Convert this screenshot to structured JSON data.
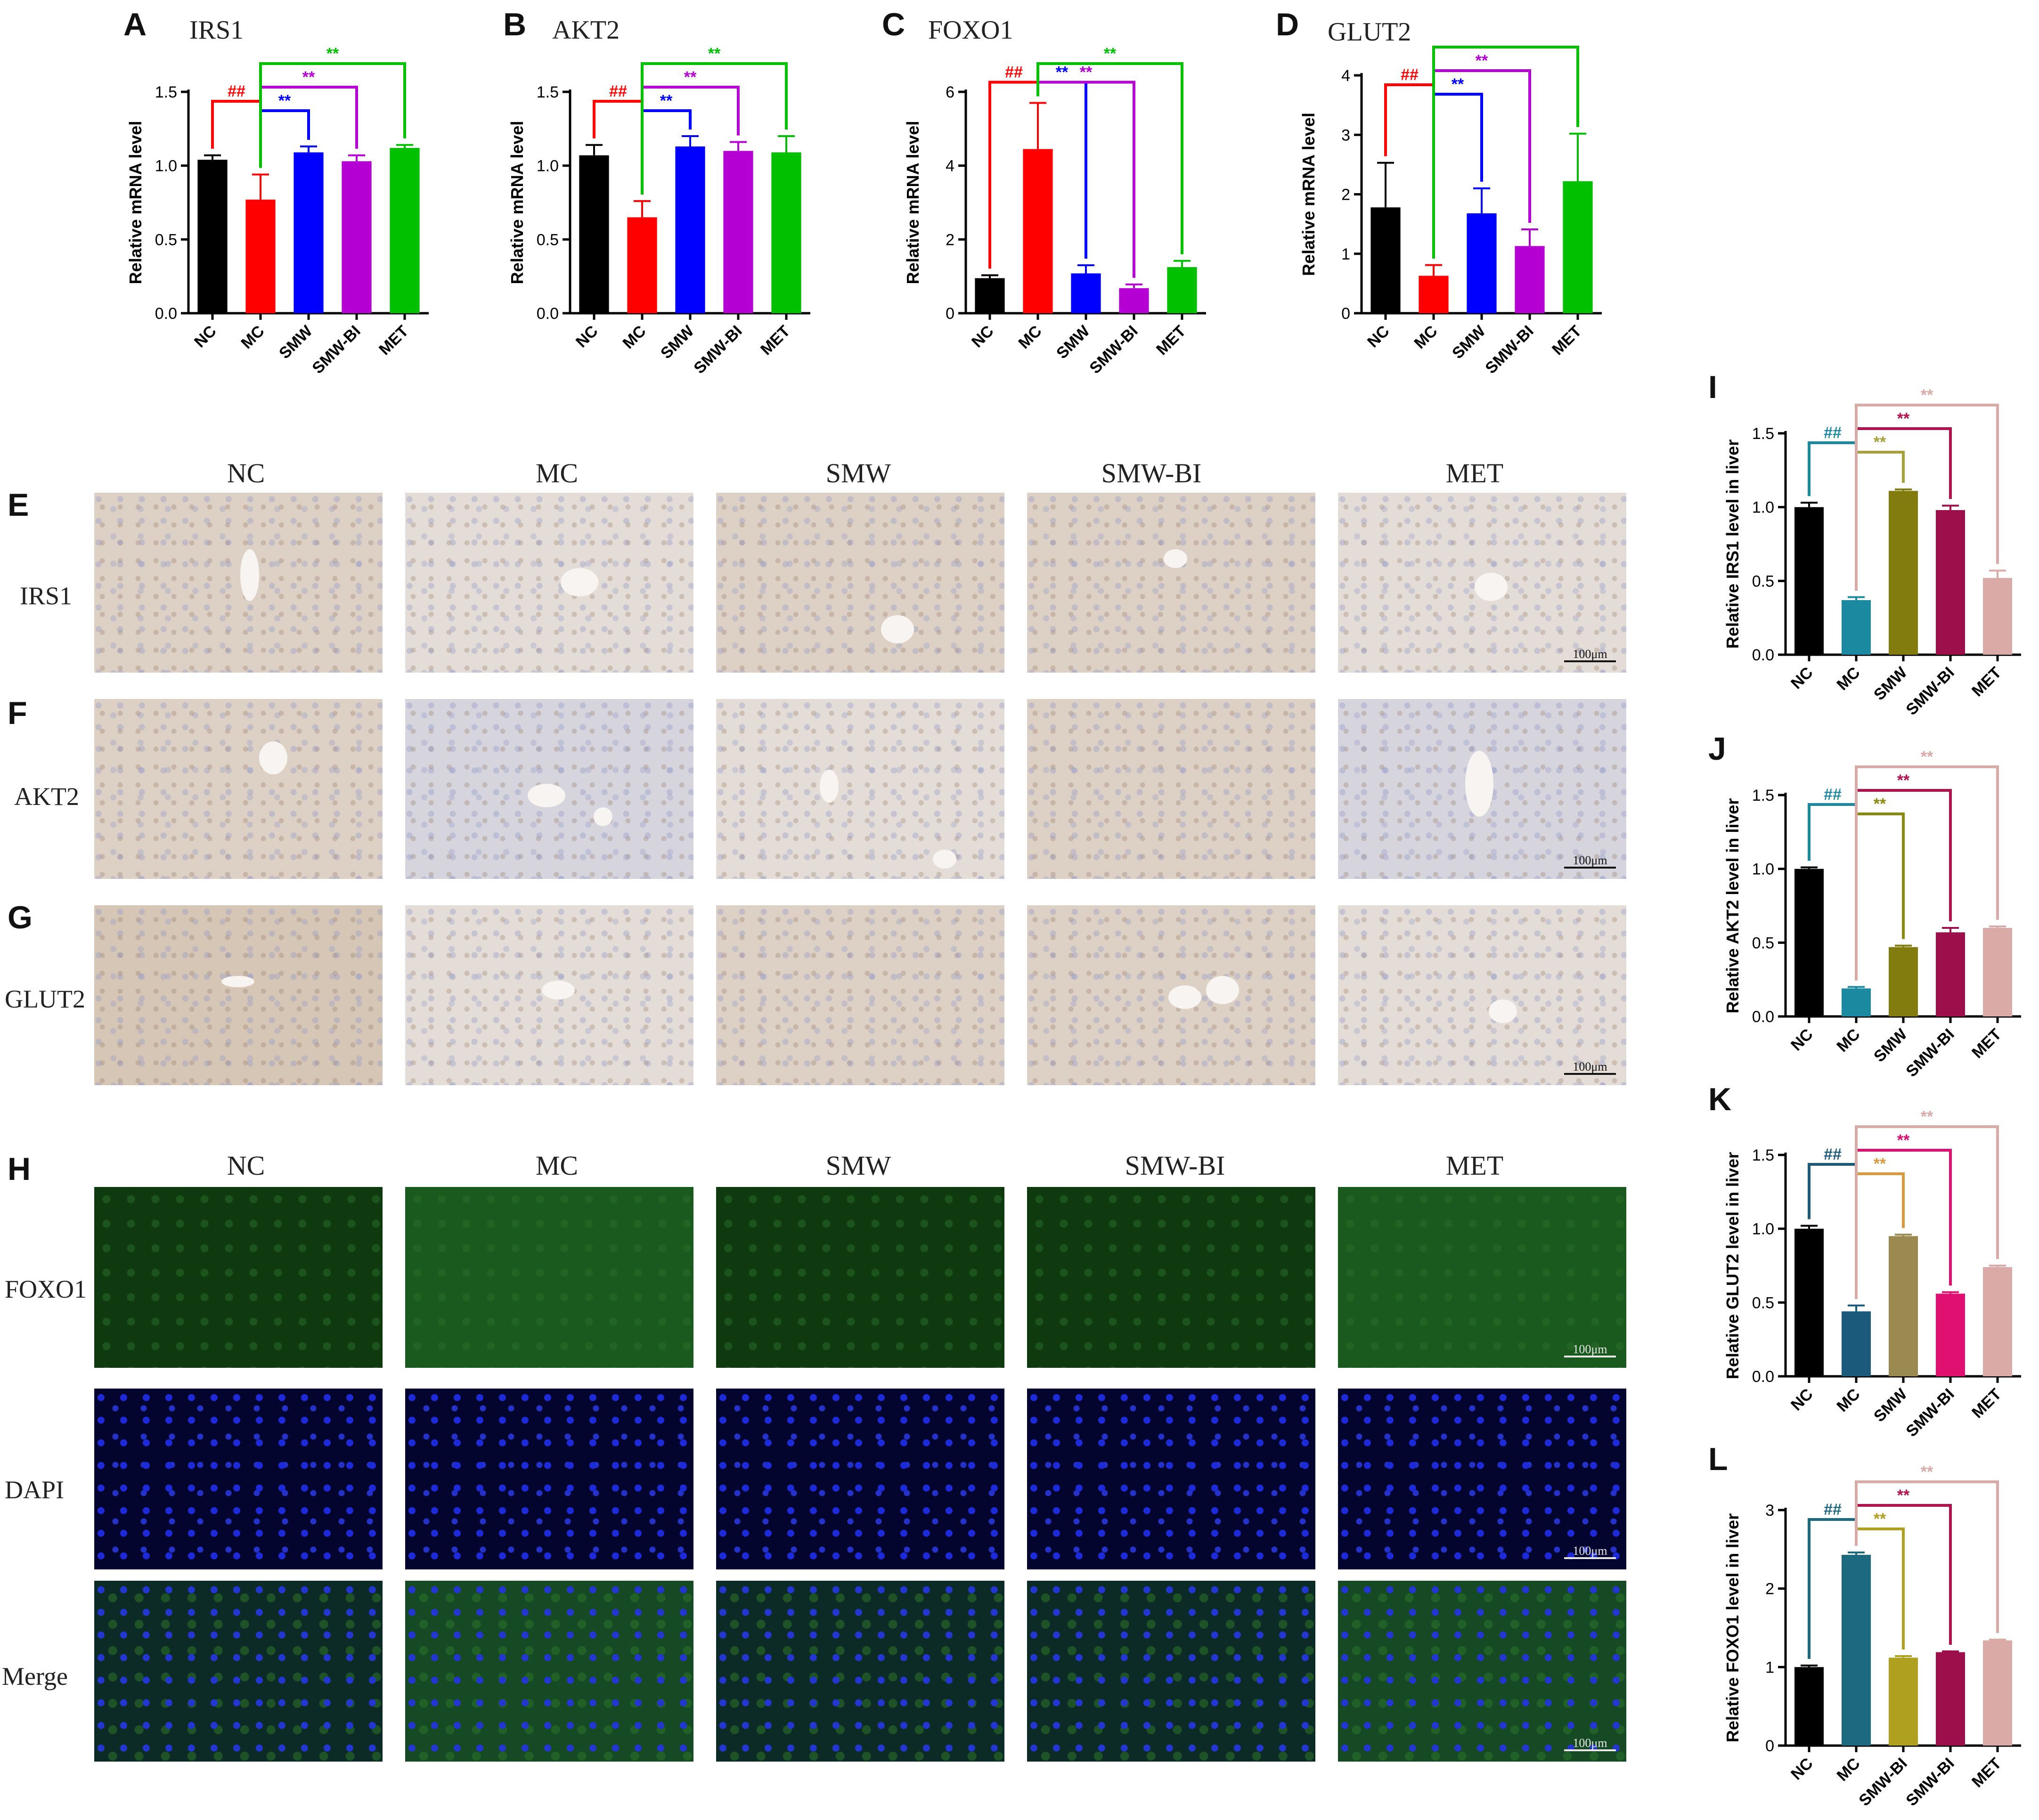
{
  "figure": {
    "panel_letters": [
      "A",
      "B",
      "C",
      "D",
      "E",
      "F",
      "G",
      "H",
      "I",
      "J",
      "K",
      "L"
    ],
    "ihc_columns": [
      "NC",
      "MC",
      "SMW",
      "SMW-BI",
      "MET"
    ],
    "ihc_rows": [
      "IRS1",
      "AKT2",
      "GLUT2"
    ],
    "if_columns": [
      "NC",
      "MC",
      "SMW",
      "SMW-BI",
      "MET"
    ],
    "if_rows": [
      "FOXO1",
      "DAPI",
      "Merge"
    ],
    "scale_bar": "100μm"
  },
  "chart_data": [
    {
      "panel": "A",
      "type": "bar",
      "title": "IRS1",
      "ylabel": "Relative mRNA level",
      "xlabel": "",
      "categories": [
        "NC",
        "MC",
        "SMW",
        "SMW-BI",
        "MET"
      ],
      "values": [
        1.04,
        0.77,
        1.09,
        1.03,
        1.12
      ],
      "errors": [
        0.03,
        0.17,
        0.04,
        0.04,
        0.02
      ],
      "colors": [
        "#000000",
        "#ff0000",
        "#0000ff",
        "#b400d2",
        "#00c000"
      ],
      "ylim": [
        0,
        1.5
      ],
      "yticks": [
        "0.0",
        "0.5",
        "1.0",
        "1.5"
      ],
      "significance": [
        {
          "from": 0,
          "to": 1,
          "label": "##",
          "color": "#ff0000"
        },
        {
          "from": 1,
          "to": 2,
          "label": "**",
          "color": "#0000ff"
        },
        {
          "from": 1,
          "to": 3,
          "label": "**",
          "color": "#b400d2"
        },
        {
          "from": 1,
          "to": 4,
          "label": "**",
          "color": "#00c000"
        }
      ]
    },
    {
      "panel": "B",
      "type": "bar",
      "title": "AKT2",
      "ylabel": "Relative mRNA level",
      "xlabel": "",
      "categories": [
        "NC",
        "MC",
        "SMW",
        "SMW-BI",
        "MET"
      ],
      "values": [
        1.07,
        0.65,
        1.13,
        1.1,
        1.09
      ],
      "errors": [
        0.07,
        0.11,
        0.07,
        0.06,
        0.11
      ],
      "colors": [
        "#000000",
        "#ff0000",
        "#0000ff",
        "#b400d2",
        "#00c000"
      ],
      "ylim": [
        0,
        1.5
      ],
      "yticks": [
        "0.0",
        "0.5",
        "1.0",
        "1.5"
      ],
      "significance": [
        {
          "from": 0,
          "to": 1,
          "label": "##",
          "color": "#ff0000"
        },
        {
          "from": 1,
          "to": 2,
          "label": "**",
          "color": "#0000ff"
        },
        {
          "from": 1,
          "to": 3,
          "label": "**",
          "color": "#b400d2"
        },
        {
          "from": 1,
          "to": 4,
          "label": "**",
          "color": "#00c000"
        }
      ]
    },
    {
      "panel": "C",
      "type": "bar",
      "title": "FOXO1",
      "ylabel": "Relative mRNA level",
      "xlabel": "",
      "categories": [
        "NC",
        "MC",
        "SMW",
        "SMW-BI",
        "MET"
      ],
      "values": [
        0.95,
        4.45,
        1.08,
        0.68,
        1.25
      ],
      "errors": [
        0.08,
        1.25,
        0.22,
        0.1,
        0.17
      ],
      "colors": [
        "#000000",
        "#ff0000",
        "#0000ff",
        "#b400d2",
        "#00c000"
      ],
      "ylim": [
        0,
        6
      ],
      "yticks": [
        "0",
        "2",
        "4",
        "6"
      ],
      "significance": [
        {
          "from": 0,
          "to": 1,
          "label": "##",
          "color": "#ff0000"
        },
        {
          "from": 1,
          "to": 2,
          "label": "**",
          "color": "#0000ff"
        },
        {
          "from": 1,
          "to": 3,
          "label": "**",
          "color": "#b400d2"
        },
        {
          "from": 1,
          "to": 4,
          "label": "**",
          "color": "#00c000"
        }
      ]
    },
    {
      "panel": "D",
      "type": "bar",
      "title": "GLUT2",
      "ylabel": "Relative mRNA level",
      "xlabel": "",
      "categories": [
        "NC",
        "MC",
        "SMW",
        "SMW-BI",
        "MET"
      ],
      "values": [
        1.78,
        0.63,
        1.68,
        1.13,
        2.22
      ],
      "errors": [
        0.75,
        0.18,
        0.42,
        0.28,
        0.8
      ],
      "colors": [
        "#000000",
        "#ff0000",
        "#0000ff",
        "#b400d2",
        "#00c000"
      ],
      "ylim": [
        0,
        4
      ],
      "yticks": [
        "0",
        "1",
        "2",
        "3",
        "4"
      ],
      "significance": [
        {
          "from": 0,
          "to": 1,
          "label": "##",
          "color": "#ff0000"
        },
        {
          "from": 1,
          "to": 2,
          "label": "**",
          "color": "#0000ff"
        },
        {
          "from": 1,
          "to": 3,
          "label": "**",
          "color": "#b400d2"
        },
        {
          "from": 1,
          "to": 4,
          "label": "**",
          "color": "#00c000"
        }
      ]
    },
    {
      "panel": "I",
      "type": "bar",
      "title": "",
      "ylabel": "Relative IRS1  level in liver",
      "xlabel": "",
      "categories": [
        "NC",
        "MC",
        "SMW",
        "SMW-BI",
        "MET"
      ],
      "values": [
        1.0,
        0.37,
        1.11,
        0.98,
        0.52
      ],
      "errors": [
        0.03,
        0.02,
        0.01,
        0.03,
        0.05
      ],
      "colors": [
        "#000000",
        "#1b8aa0",
        "#827b0e",
        "#9c0f4b",
        "#d9aaa6"
      ],
      "ylim": [
        0,
        1.5
      ],
      "yticks": [
        "0.0",
        "0.5",
        "1.0",
        "1.5"
      ],
      "significance": [
        {
          "from": 0,
          "to": 1,
          "label": "##",
          "color": "#1b8aa0"
        },
        {
          "from": 1,
          "to": 2,
          "label": "**",
          "color": "#a6a13a"
        },
        {
          "from": 1,
          "to": 3,
          "label": "**",
          "color": "#b3124c"
        },
        {
          "from": 1,
          "to": 4,
          "label": "**",
          "color": "#d9aaa6"
        }
      ]
    },
    {
      "panel": "J",
      "type": "bar",
      "title": "",
      "ylabel": "Relative AKT2  level in liver",
      "xlabel": "",
      "categories": [
        "NC",
        "MC",
        "SMW",
        "SMW-BI",
        "MET"
      ],
      "values": [
        1.0,
        0.19,
        0.47,
        0.57,
        0.6
      ],
      "errors": [
        0.01,
        0.01,
        0.01,
        0.03,
        0.01
      ],
      "colors": [
        "#000000",
        "#1b8aa0",
        "#827b0e",
        "#9c0f4b",
        "#d9aaa6"
      ],
      "ylim": [
        0,
        1.5
      ],
      "yticks": [
        "0.0",
        "0.5",
        "1.0",
        "1.5"
      ],
      "significance": [
        {
          "from": 0,
          "to": 1,
          "label": "##",
          "color": "#1b8aa0"
        },
        {
          "from": 1,
          "to": 2,
          "label": "**",
          "color": "#8a8a10"
        },
        {
          "from": 1,
          "to": 3,
          "label": "**",
          "color": "#b3124c"
        },
        {
          "from": 1,
          "to": 4,
          "label": "**",
          "color": "#d9aaa6"
        }
      ]
    },
    {
      "panel": "K",
      "type": "bar",
      "title": "",
      "ylabel": "Relative GLUT2  level in liver",
      "xlabel": "",
      "categories": [
        "NC",
        "MC",
        "SMW",
        "SMW-BI",
        "MET"
      ],
      "values": [
        1.0,
        0.44,
        0.95,
        0.56,
        0.74
      ],
      "errors": [
        0.02,
        0.04,
        0.01,
        0.01,
        0.01
      ],
      "colors": [
        "#000000",
        "#1b5a7a",
        "#9a8a50",
        "#e01070",
        "#d9aaa6"
      ],
      "ylim": [
        0,
        1.5
      ],
      "yticks": [
        "0.0",
        "0.5",
        "1.0",
        "1.5"
      ],
      "significance": [
        {
          "from": 0,
          "to": 1,
          "label": "##",
          "color": "#1b5a7a"
        },
        {
          "from": 1,
          "to": 2,
          "label": "**",
          "color": "#d99a40"
        },
        {
          "from": 1,
          "to": 3,
          "label": "**",
          "color": "#e01070"
        },
        {
          "from": 1,
          "to": 4,
          "label": "**",
          "color": "#d9aaa6"
        }
      ]
    },
    {
      "panel": "L",
      "type": "bar",
      "title": "",
      "ylabel": "Relative FOXO1  level in liver",
      "xlabel": "",
      "categories": [
        "NC",
        "MC",
        "SMW-BI",
        "SMW-BI",
        "MET"
      ],
      "values": [
        1.0,
        2.43,
        1.12,
        1.19,
        1.34
      ],
      "errors": [
        0.02,
        0.03,
        0.02,
        0.01,
        0.01
      ],
      "colors": [
        "#000000",
        "#1b6a80",
        "#b0a020",
        "#9c0f4b",
        "#d9aaa6"
      ],
      "ylim": [
        0,
        3
      ],
      "yticks": [
        "0",
        "1",
        "2",
        "3"
      ],
      "significance": [
        {
          "from": 0,
          "to": 1,
          "label": "##",
          "color": "#1b6a80"
        },
        {
          "from": 1,
          "to": 2,
          "label": "**",
          "color": "#b0a020"
        },
        {
          "from": 1,
          "to": 3,
          "label": "**",
          "color": "#b3124c"
        },
        {
          "from": 1,
          "to": 4,
          "label": "**",
          "color": "#d9aaa6"
        }
      ]
    }
  ]
}
